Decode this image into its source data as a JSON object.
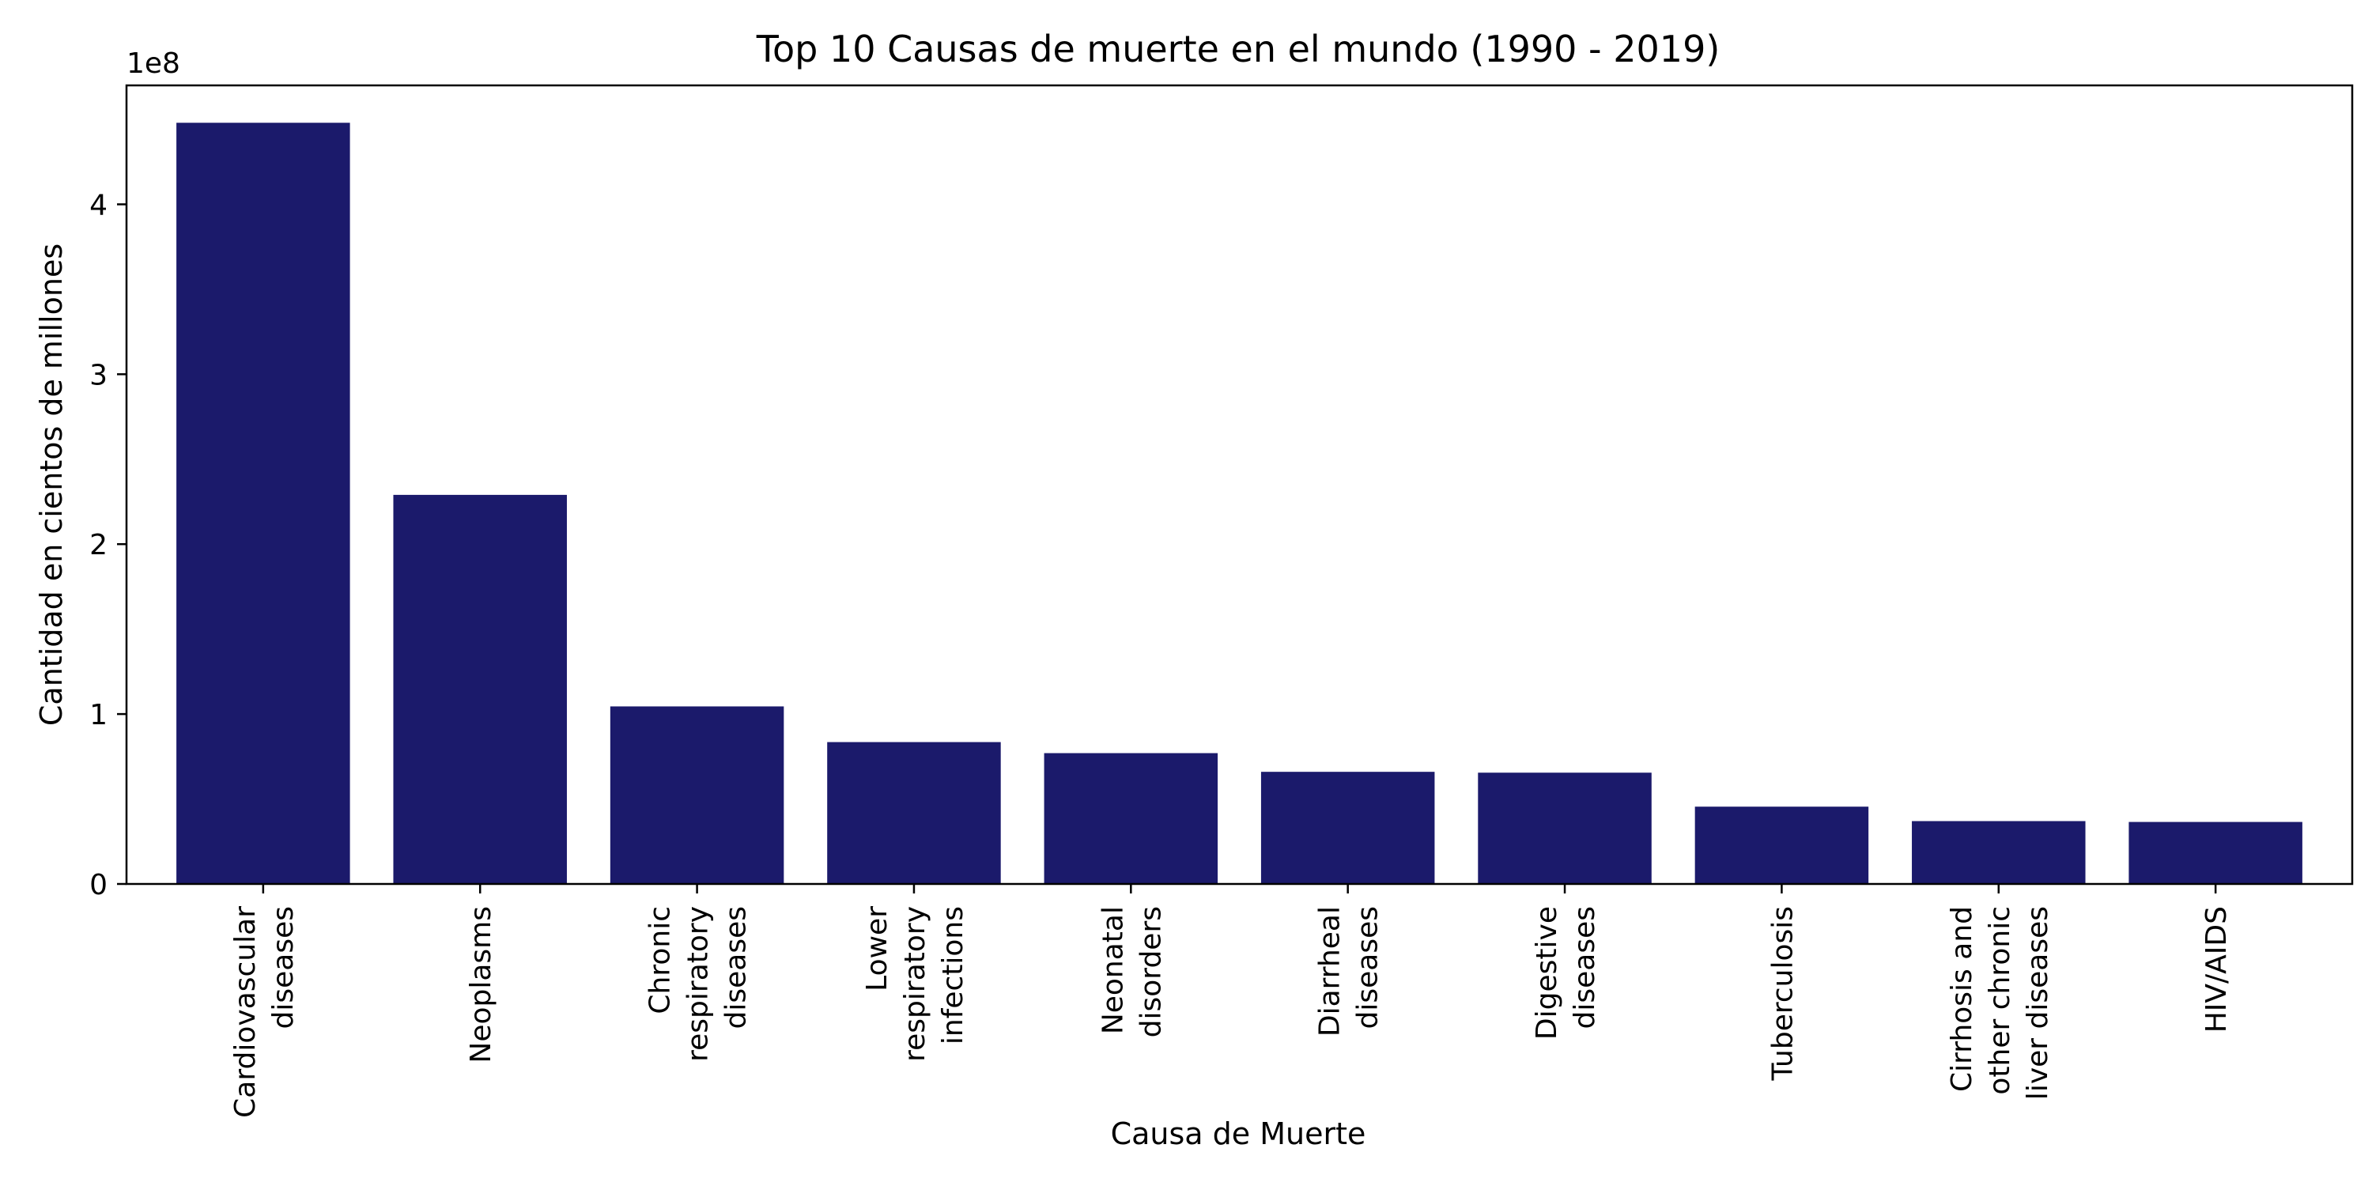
{
  "chart_data": {
    "type": "bar",
    "title": "Top 10 Causas de muerte en el mundo (1990 - 2019)",
    "xlabel": "Causa de Muerte",
    "ylabel": "Cantidad en cientos de millones",
    "y_offset_label": "1e8",
    "ylim": [
      0,
      470000000
    ],
    "y_ticks": [
      0,
      100000000,
      200000000,
      300000000,
      400000000
    ],
    "y_tick_labels": [
      "0",
      "1",
      "2",
      "3",
      "4"
    ],
    "categories": [
      "Cardiovascular diseases",
      "Neoplasms",
      "Chronic respiratory diseases",
      "Lower respiratory infections",
      "Neonatal disorders",
      "Diarrheal diseases",
      "Digestive diseases",
      "Tuberculosis",
      "Cirrhosis and other chronic liver diseases",
      "HIV/AIDS"
    ],
    "category_label_lines": [
      [
        "Cardiovascular",
        "diseases"
      ],
      [
        "Neoplasms"
      ],
      [
        "Chronic",
        "respiratory",
        "diseases"
      ],
      [
        "Lower",
        "respiratory",
        "infections"
      ],
      [
        "Neonatal",
        "disorders"
      ],
      [
        "Diarrheal",
        "diseases"
      ],
      [
        "Digestive",
        "diseases"
      ],
      [
        "Tuberculosis"
      ],
      [
        "Cirrhosis and",
        "other chronic",
        "liver diseases"
      ],
      [
        "HIV/AIDS"
      ]
    ],
    "values": [
      448000000,
      229000000,
      104500000,
      83500000,
      77000000,
      66000000,
      65500000,
      45500000,
      37000000,
      36500000
    ],
    "bar_color": "#1b1a6b",
    "grid": false,
    "legend": "none"
  }
}
